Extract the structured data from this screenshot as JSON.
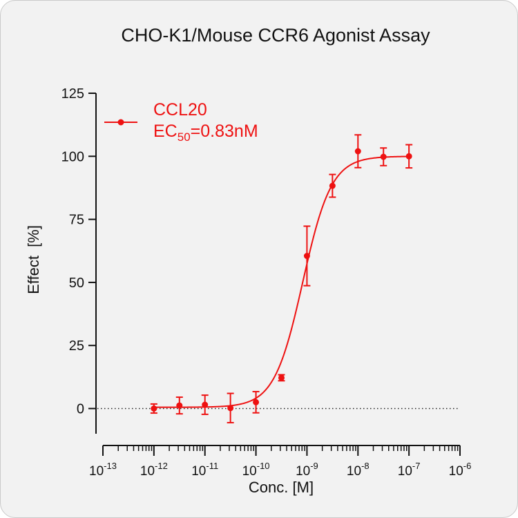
{
  "chart_data": {
    "type": "scatter",
    "title": "CHO-K1/Mouse CCR6 Agonist Assay",
    "xlabel": "Conc. [M]",
    "ylabel": "Effect  [%]",
    "x_scale": "log",
    "xlim": [
      1e-13,
      1e-06
    ],
    "ylim": [
      -10,
      125
    ],
    "x_ticks": [
      {
        "base": "10",
        "exp": "-13"
      },
      {
        "base": "10",
        "exp": "-12"
      },
      {
        "base": "10",
        "exp": "-11"
      },
      {
        "base": "10",
        "exp": "-10"
      },
      {
        "base": "10",
        "exp": "-9"
      },
      {
        "base": "10",
        "exp": "-8"
      },
      {
        "base": "10",
        "exp": "-7"
      },
      {
        "base": "10",
        "exp": "-6"
      }
    ],
    "y_ticks": [
      "0",
      "25",
      "50",
      "75",
      "100",
      "125"
    ],
    "reference_line": {
      "y": 0,
      "style": "dotted"
    },
    "legend": {
      "placement": "top-left",
      "ec50_label": {
        "prefix": "EC",
        "sub": "50",
        "suffix": "=0.83nM"
      }
    },
    "series": [
      {
        "name": "CCL20",
        "color": "#ee1111",
        "points": [
          {
            "x": 1e-12,
            "y": 0.0,
            "err": 1.8
          },
          {
            "x": 3.162e-12,
            "y": 1.2,
            "err": 3.3
          },
          {
            "x": 1e-11,
            "y": 1.5,
            "err": 3.8
          },
          {
            "x": 3.162e-11,
            "y": 0.2,
            "err": 5.8
          },
          {
            "x": 1e-10,
            "y": 2.5,
            "err": 4.2
          },
          {
            "x": 3.162e-10,
            "y": 12.2,
            "err": 1.2
          },
          {
            "x": 1e-09,
            "y": 60.5,
            "err": 11.8
          },
          {
            "x": 3.162e-09,
            "y": 88.3,
            "err": 4.5
          },
          {
            "x": 1e-08,
            "y": 102.0,
            "err": 6.5
          },
          {
            "x": 3.162e-08,
            "y": 99.8,
            "err": 3.5
          },
          {
            "x": 1e-07,
            "y": 100.0,
            "err": 4.6
          }
        ],
        "fit": {
          "model": "4PL",
          "bottom": 0.5,
          "top": 100.0,
          "ec50": 8.3e-10,
          "hill": 1.55
        }
      }
    ]
  }
}
